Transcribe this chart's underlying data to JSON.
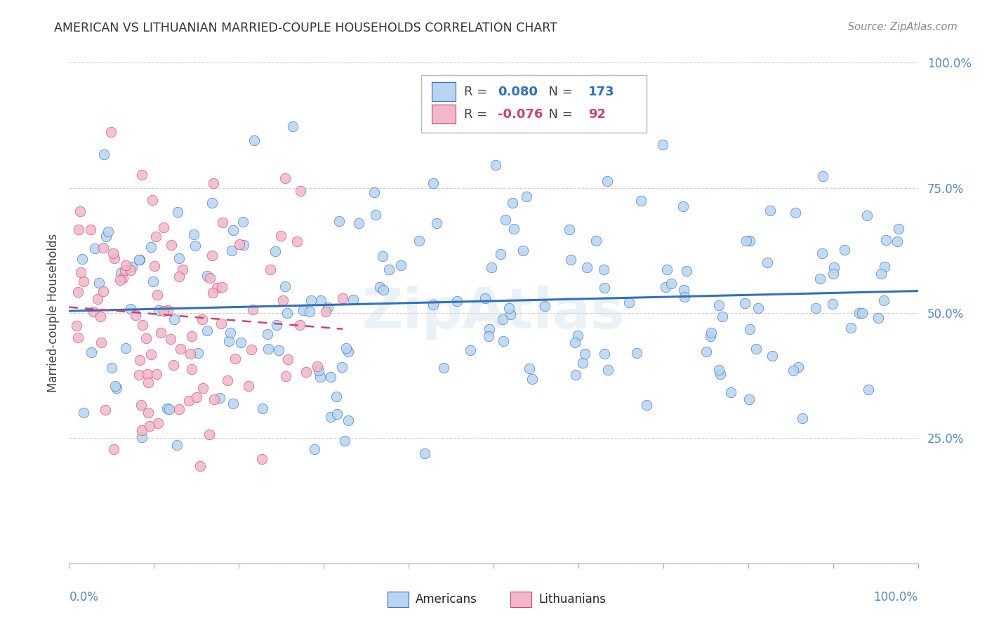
{
  "title": "AMERICAN VS LITHUANIAN MARRIED-COUPLE HOUSEHOLDS CORRELATION CHART",
  "source": "Source: ZipAtlas.com",
  "ylabel": "Married-couple Households",
  "watermark": "ZipAtlas",
  "legend": {
    "americans": {
      "R": 0.08,
      "N": 173,
      "color": "#b8d4f0",
      "line_color": "#3070c0"
    },
    "lithuanians": {
      "R": -0.076,
      "N": 92,
      "color": "#f0b8c8",
      "line_color": "#d04070"
    }
  },
  "yticks": [
    0.0,
    0.25,
    0.5,
    0.75,
    1.0
  ],
  "ytick_labels": [
    "",
    "25.0%",
    "50.0%",
    "75.0%",
    "100.0%"
  ],
  "background_color": "#ffffff",
  "grid_color": "#cccccc",
  "title_color": "#333333",
  "axis_color": "#5588cc",
  "seed_americans": 42,
  "seed_lithuanians": 7
}
